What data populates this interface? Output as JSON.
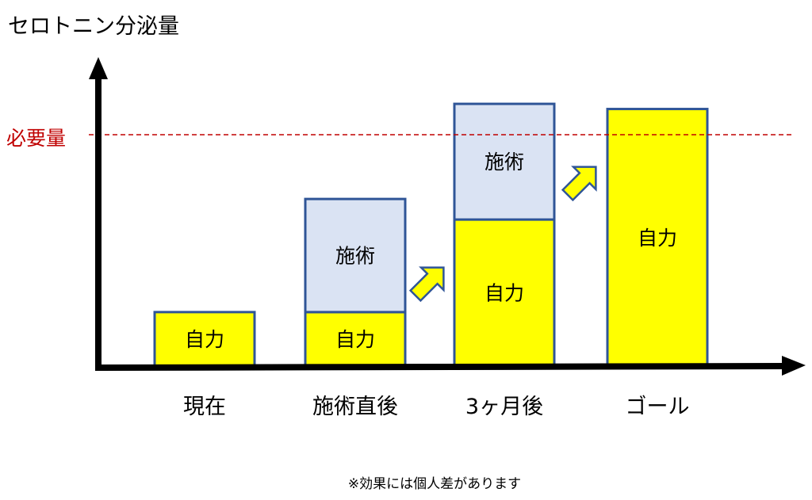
{
  "chart_data": {
    "type": "bar",
    "stacked": true,
    "title": "セロトニン分泌量",
    "xlabel": "",
    "ylabel": "",
    "categories": [
      "現在",
      "施術直後",
      "3ヶ月後",
      "ゴール"
    ],
    "ylim": [
      0,
      10
    ],
    "series": [
      {
        "name": "自力",
        "values": [
          2.1,
          2.1,
          5.7,
          10.0
        ],
        "color": "#ffff00",
        "segment_label": "自力"
      },
      {
        "name": "施術",
        "values": [
          0,
          4.4,
          4.5,
          0
        ],
        "color": "#dae3f3",
        "segment_label": "施術"
      }
    ],
    "reference_line": {
      "label": "必要量",
      "value": 9.0,
      "color": "#c00000",
      "style": "dashed"
    },
    "annotations": {
      "footnote": "※効果には個人差があります",
      "arrows_between": [
        [
          1,
          2
        ],
        [
          2,
          3
        ]
      ]
    },
    "colors": {
      "axis": "#000000",
      "bar_border": "#2f5597",
      "arrow_fill": "#ffff00",
      "arrow_border": "#2f5597"
    },
    "grid": false,
    "legend": "none"
  }
}
